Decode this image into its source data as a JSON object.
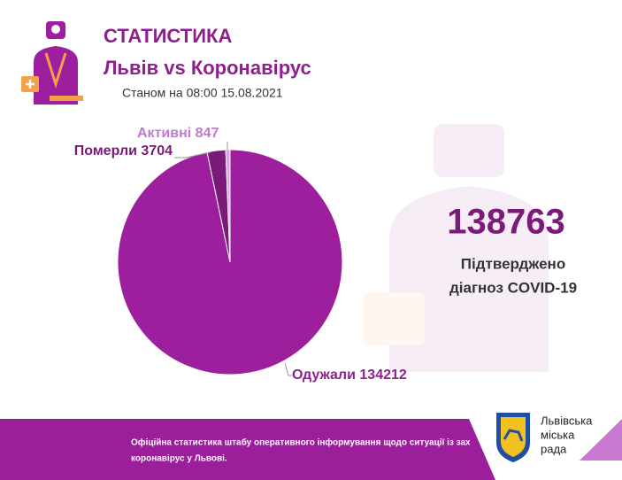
{
  "chart_data": {
    "type": "pie",
    "title": "СТАТИСТИКА",
    "subtitle": "Львів vs Коронавірус",
    "date_line": "Станом на 08:00 15.08.2021",
    "categories": [
      "Одужали",
      "Померли",
      "Активні"
    ],
    "values": [
      134212,
      3704,
      847
    ],
    "colors": [
      "#9d1f9d",
      "#7a1a78",
      "#d9a8e2"
    ],
    "label_colors": [
      "#8e1f8e",
      "#7a1a78",
      "#c07ad0"
    ],
    "total": "138763",
    "total_caption": [
      "Підтверджено",
      "діагноз COVID-19"
    ],
    "footer": [
      "Офіційна статистика штабу оперативного інформування щодо ситуації із зах",
      "коронавірус у Львові."
    ],
    "logo": [
      "Львівська",
      "міська",
      "рада"
    ]
  }
}
